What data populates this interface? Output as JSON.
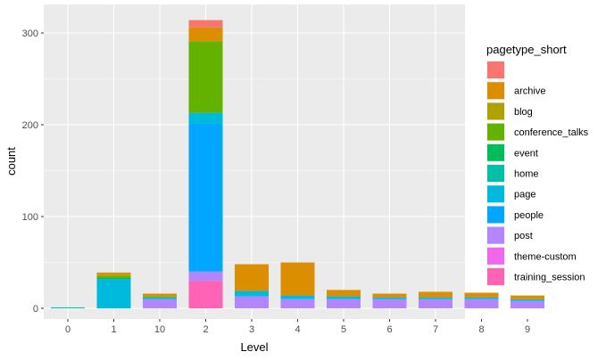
{
  "chart_data": {
    "type": "bar",
    "stacked": true,
    "xlabel": "Level",
    "ylabel": "count",
    "ylim": [
      0,
      320
    ],
    "yticks": [
      0,
      100,
      200,
      300
    ],
    "grid": true,
    "legend_position": "right",
    "legend_title": "pagetype_short",
    "categories": [
      "0",
      "1",
      "10",
      "2",
      "3",
      "4",
      "5",
      "6",
      "7",
      "8",
      "9"
    ],
    "series": [
      {
        "name": "",
        "color": "#F8766D",
        "values": [
          0,
          0,
          0,
          8,
          0,
          0,
          0,
          0,
          0,
          0,
          0
        ]
      },
      {
        "name": "archive",
        "color": "#DB8E00",
        "values": [
          0,
          2,
          3,
          15,
          29,
          36,
          7,
          4,
          6,
          5,
          4
        ]
      },
      {
        "name": "blog",
        "color": "#AEA200",
        "values": [
          0,
          2,
          0,
          0,
          0,
          0,
          0,
          0,
          0,
          0,
          0
        ]
      },
      {
        "name": "conference_talks",
        "color": "#64B200",
        "values": [
          0,
          2,
          1,
          78,
          0,
          0,
          0,
          0,
          0,
          0,
          0
        ]
      },
      {
        "name": "event",
        "color": "#00BD5C",
        "values": [
          0,
          1,
          0,
          0,
          0,
          0,
          0,
          0,
          0,
          0,
          0
        ]
      },
      {
        "name": "home",
        "color": "#00C1A7",
        "values": [
          1,
          0,
          0,
          0,
          0,
          0,
          0,
          0,
          0,
          0,
          0
        ]
      },
      {
        "name": "page",
        "color": "#00BADE",
        "values": [
          0,
          32,
          2,
          12,
          6,
          4,
          3,
          2,
          2,
          2,
          2
        ]
      },
      {
        "name": "people",
        "color": "#00A6FF",
        "values": [
          0,
          0,
          0,
          161,
          0,
          0,
          0,
          0,
          0,
          0,
          0
        ]
      },
      {
        "name": "post",
        "color": "#B385FF",
        "values": [
          0,
          0,
          10,
          10,
          13,
          10,
          10,
          10,
          10,
          10,
          8
        ]
      },
      {
        "name": "theme-custom",
        "color": "#EF67EB",
        "values": [
          0,
          0,
          0,
          0,
          0,
          0,
          0,
          0,
          0,
          0,
          0
        ]
      },
      {
        "name": "training_session",
        "color": "#FF63B6",
        "values": [
          0,
          0,
          0,
          30,
          0,
          0,
          0,
          0,
          0,
          0,
          0
        ]
      }
    ]
  }
}
